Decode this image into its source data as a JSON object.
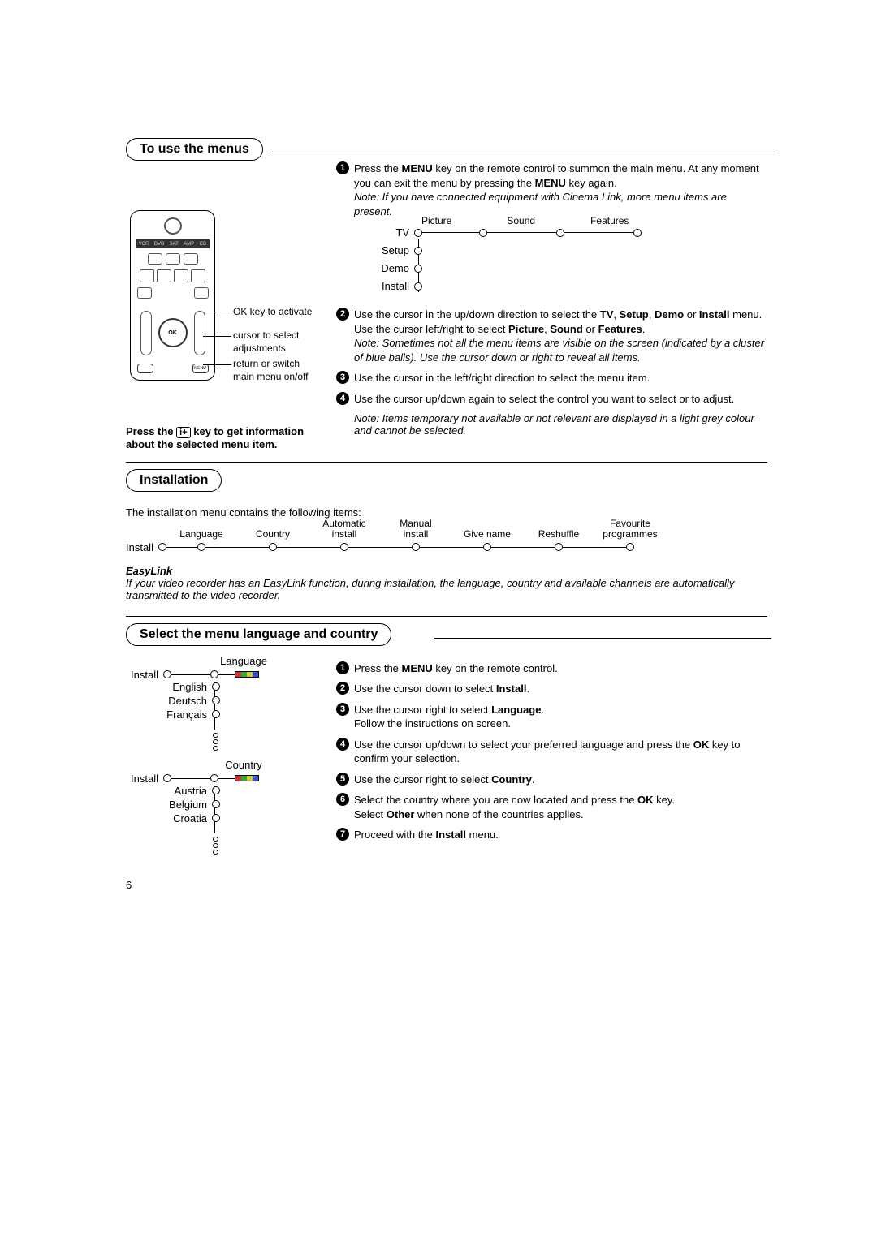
{
  "sections": {
    "to_use_menus": "To use the menus",
    "installation": "Installation",
    "select_lang": "Select the menu language and country"
  },
  "remote": {
    "src_labels": [
      "VCR",
      "DVD",
      "SAT",
      "AMP",
      "CD"
    ],
    "ok": "OK",
    "menu": "MENU"
  },
  "remote_anno": {
    "ok": "OK key to activate",
    "cursor": "cursor to select adjustments",
    "menu": "return or switch main menu on/off"
  },
  "press_info_1": "Press the ",
  "press_info_icon": "i+",
  "press_info_2": " key to get information about the selected menu item.",
  "steps1": {
    "s1a": "Press the ",
    "s1b": "MENU",
    "s1c": " key on the remote control to summon the main menu. At any moment you can exit the menu by pressing the ",
    "s1d": "MENU",
    "s1e": " key again.",
    "note1": "Note: If you have connected equipment with Cinema Link, more menu items are present.",
    "s2a": "Use the cursor in the up/down direction to select the ",
    "s2b": "TV",
    "s2c": ", ",
    "s2d": "Setup",
    "s2e": ", ",
    "s2f": "Demo",
    "s2g": " or ",
    "s2h": "Install",
    "s2i": " menu.",
    "s2j": "Use the cursor left/right to select ",
    "s2k": "Picture",
    "s2l": ", ",
    "s2m": "Sound",
    "s2n": " or ",
    "s2o": "Features",
    "s2p": ".",
    "note2": "Note: Sometimes not all the menu items are visible on the screen (indicated by a cluster of blue balls). Use the cursor down or right to reveal all items.",
    "s3": "Use the cursor in the left/right direction to select the menu item.",
    "s4": "Use the cursor up/down again to select the control you want to select or to adjust.",
    "note3": "Note: Items temporary not available or not relevant are displayed in a light grey colour and cannot be selected."
  },
  "tv_tree": {
    "root": "TV",
    "h": [
      "Picture",
      "Sound",
      "Features"
    ],
    "v": [
      "Setup",
      "Demo",
      "Install"
    ]
  },
  "install_intro": "The installation menu contains the following items:",
  "install_tree": {
    "root": "Install",
    "items": [
      "Language",
      "Country",
      "Automatic\ninstall",
      "Manual\ninstall",
      "Give name",
      "Reshuffle",
      "Favourite\nprogrammes"
    ]
  },
  "easylink_title": "EasyLink",
  "easylink_body": "If your video recorder has an EasyLink function, during installation, the language, country and available channels are automatically transmitted to the video recorder.",
  "lang_tree": {
    "root": "Install",
    "branch": "Language",
    "opts": [
      "English",
      "Deutsch",
      "Français"
    ]
  },
  "country_tree": {
    "root": "Install",
    "branch": "Country",
    "opts": [
      "Austria",
      "Belgium",
      "Croatia"
    ]
  },
  "steps2": {
    "s1": "Press the MENU key on the remote control.",
    "s2a": "Use the cursor down to select ",
    "s2b": "Install",
    "s2c": ".",
    "s3a": "Use the cursor right to select ",
    "s3b": "Language",
    "s3c": ".",
    "s3d": "Follow the instructions on screen.",
    "s4a": "Use the cursor up/down to select your preferred language and press the ",
    "s4b": "OK",
    "s4c": " key to confirm your selection.",
    "s5a": "Use the cursor right to select ",
    "s5b": "Country",
    "s5c": ".",
    "s6a": "Select the country where you are now located and press the ",
    "s6b": "OK",
    "s6c": " key.",
    "s6d": "Select ",
    "s6e": "Other",
    "s6f": " when none of the countries applies.",
    "s7a": "Proceed with the ",
    "s7b": "Install",
    "s7c": " menu."
  },
  "colorbar": [
    "#cc3333",
    "#33aa33",
    "#cccc33",
    "#3355cc"
  ],
  "page_num": "6"
}
